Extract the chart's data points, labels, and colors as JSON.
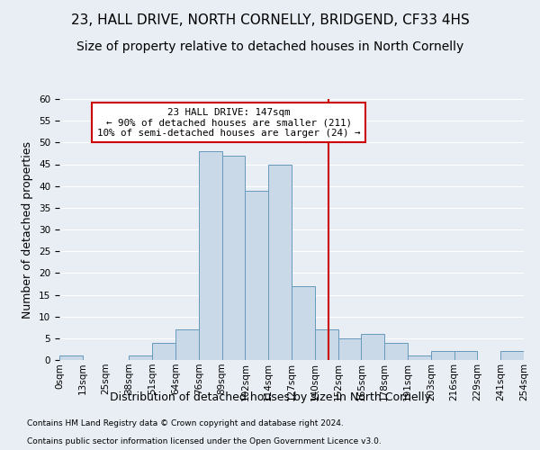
{
  "title": "23, HALL DRIVE, NORTH CORNELLY, BRIDGEND, CF33 4HS",
  "subtitle": "Size of property relative to detached houses in North Cornelly",
  "xlabel": "Distribution of detached houses by size in North Cornelly",
  "ylabel": "Number of detached properties",
  "footnote1": "Contains HM Land Registry data © Crown copyright and database right 2024.",
  "footnote2": "Contains public sector information licensed under the Open Government Licence v3.0.",
  "bin_labels": [
    "0sqm",
    "13sqm",
    "25sqm",
    "38sqm",
    "51sqm",
    "64sqm",
    "76sqm",
    "89sqm",
    "102sqm",
    "114sqm",
    "127sqm",
    "140sqm",
    "152sqm",
    "165sqm",
    "178sqm",
    "191sqm",
    "203sqm",
    "216sqm",
    "229sqm",
    "241sqm",
    "254sqm"
  ],
  "bar_heights": [
    1,
    0,
    0,
    1,
    4,
    7,
    48,
    47,
    39,
    45,
    17,
    7,
    5,
    6,
    4,
    1,
    2,
    2,
    0,
    2
  ],
  "bar_color": "#c9d9e8",
  "bar_edge_color": "#6699bb",
  "annotation_text": "23 HALL DRIVE: 147sqm\n← 90% of detached houses are smaller (211)\n10% of semi-detached houses are larger (24) →",
  "vline_color": "#cc0000",
  "annotation_box_color": "#ffffff",
  "annotation_box_edge": "#cc0000",
  "ylim": [
    0,
    60
  ],
  "yticks": [
    0,
    5,
    10,
    15,
    20,
    25,
    30,
    35,
    40,
    45,
    50,
    55,
    60
  ],
  "bg_color": "#e8eef4",
  "plot_bg_color": "#e8eef4",
  "title_fontsize": 11,
  "subtitle_fontsize": 10,
  "axis_label_fontsize": 9,
  "tick_fontsize": 7.5
}
